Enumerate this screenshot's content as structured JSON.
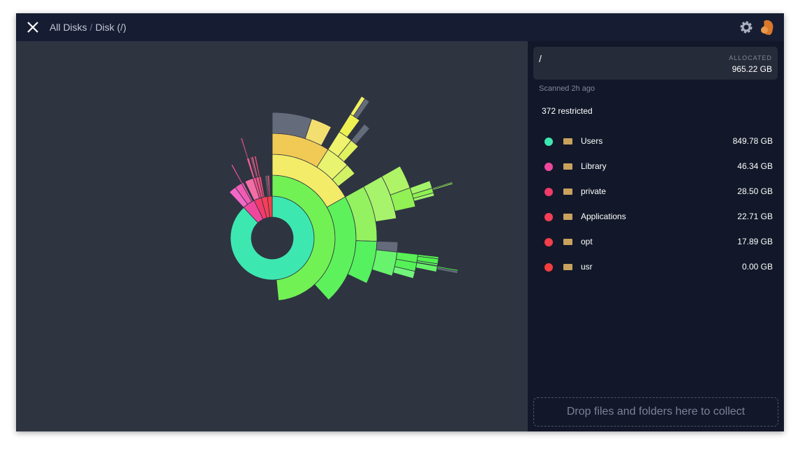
{
  "header": {
    "breadcrumb": [
      "All Disks",
      "Disk (/)"
    ],
    "separator": "/"
  },
  "summary": {
    "path": "/",
    "allocated_label": "ALLOCATED",
    "allocated": "965.22 GB"
  },
  "scanned": "Scanned 2h ago",
  "restricted": "372 restricted",
  "items": [
    {
      "name": "Users",
      "size": 849.78,
      "size_label": "849.78 GB",
      "color": "#3de8b0"
    },
    {
      "name": "Library",
      "size": 46.34,
      "size_label": "46.34 GB",
      "color": "#f0479e"
    },
    {
      "name": "private",
      "size": 28.5,
      "size_label": "28.50 GB",
      "color": "#f23a6b"
    },
    {
      "name": "Applications",
      "size": 22.71,
      "size_label": "22.71 GB",
      "color": "#f53f57"
    },
    {
      "name": "opt",
      "size": 17.89,
      "size_label": "17.89 GB",
      "color": "#f43e4a"
    },
    {
      "name": "usr",
      "size": 0,
      "size_label": "0.00 GB",
      "color": "#f43e3e"
    }
  ],
  "drop_zone": "Drop files and folders here to collect"
}
